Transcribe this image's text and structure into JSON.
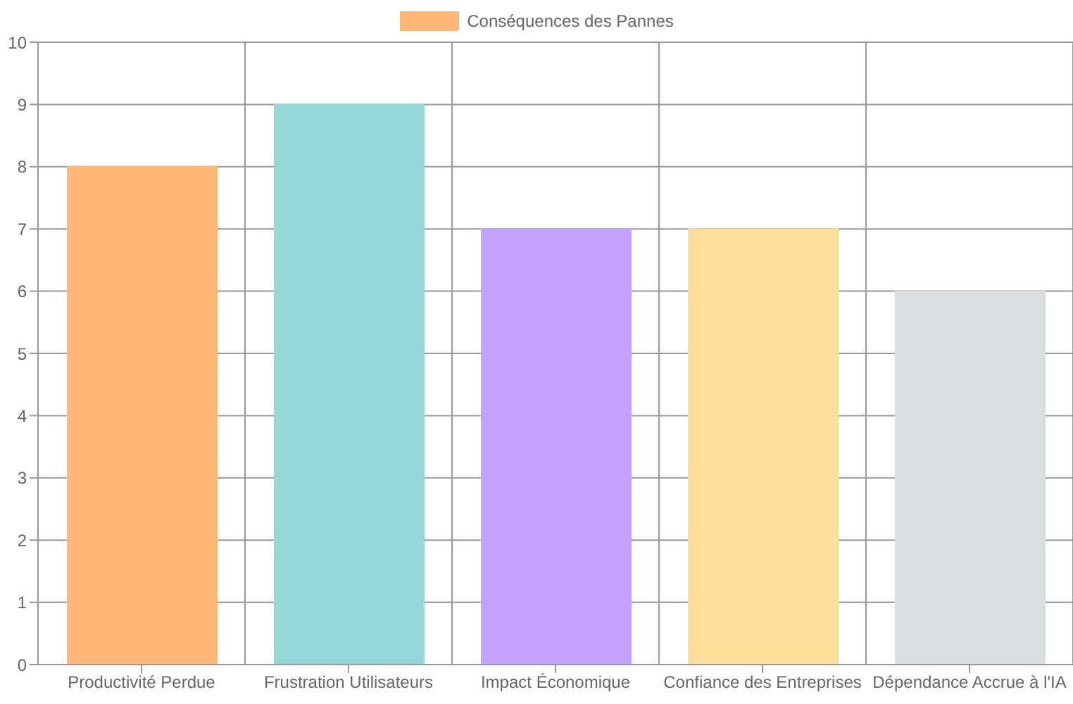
{
  "chart_data": {
    "type": "bar",
    "categories": [
      "Productivité Perdue",
      "Frustration Utilisateurs",
      "Impact Économique",
      "Confiance des Entreprises",
      "Dépendance Accrue à l'IA"
    ],
    "series": [
      {
        "name": "Conséquences des Pannes",
        "color": "#ffb878",
        "colors": [
          "#ffb878",
          "#96d8d8",
          "#c4a3ff",
          "#ffdf9b",
          "#dcdde0"
        ],
        "values": [
          8,
          9,
          7,
          7,
          6
        ]
      }
    ],
    "ylim": [
      0,
      10
    ],
    "yticks": [
      0,
      1,
      2,
      3,
      4,
      5,
      6,
      7,
      8,
      9,
      10
    ],
    "grid": true,
    "legend": "top"
  }
}
